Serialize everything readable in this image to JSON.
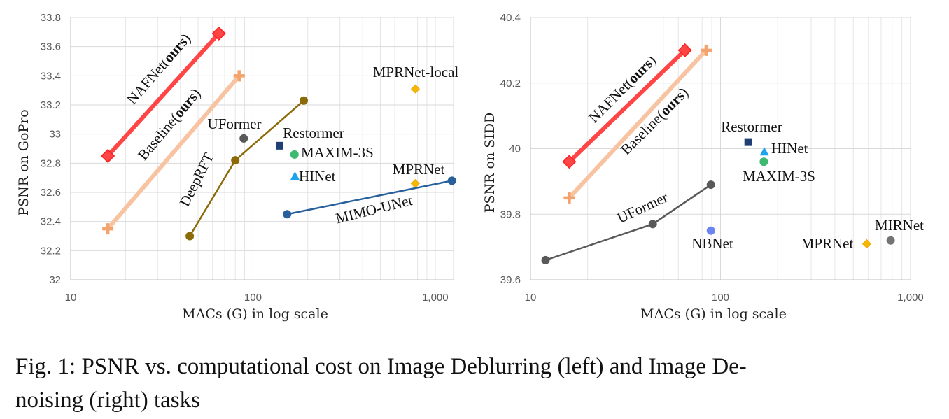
{
  "caption": {
    "line1": "Fig. 1: PSNR vs. computational cost on Image Deblurring (left) and Image De-",
    "line2": "noising (right) tasks"
  },
  "chart_data": [
    {
      "type": "scatter",
      "xlabel": "MACs (G) in log scale",
      "ylabel": "PSNR on GoPro",
      "xscale": "log",
      "xlim": [
        10,
        1260
      ],
      "ylim": [
        32,
        33.8
      ],
      "xticks": [
        "10",
        "100",
        "1,000"
      ],
      "xtick_values": [
        10,
        100,
        1000
      ],
      "yticks": [
        "32",
        "32.2",
        "32.4",
        "32.6",
        "32.8",
        "33",
        "33.2",
        "33.4",
        "33.6",
        "33.8"
      ],
      "ytick_values": [
        32,
        32.2,
        32.4,
        32.6,
        32.8,
        33,
        33.2,
        33.4,
        33.6,
        33.8
      ],
      "grid": true,
      "series": [
        {
          "name": "NAFNet(ours)",
          "color": "#ff4545",
          "marker": "diamond",
          "x": [
            16,
            65
          ],
          "y": [
            32.85,
            33.69
          ]
        },
        {
          "name": "Baseline(ours)",
          "color": "#f7c3a0",
          "marker_color": "#f4a36c",
          "marker": "plus",
          "x": [
            16,
            84
          ],
          "y": [
            32.35,
            33.4
          ]
        },
        {
          "name": "DeepRFT",
          "color": "#8c6a0a",
          "marker": "circle",
          "x": [
            45,
            80,
            190
          ],
          "y": [
            32.3,
            32.82,
            33.23
          ]
        },
        {
          "name": "UFormer",
          "color": "#595959",
          "marker": "circle",
          "x": [
            89
          ],
          "y": [
            32.97
          ]
        },
        {
          "name": "Restormer",
          "color": "#1f3f75",
          "marker": "square",
          "x": [
            140
          ],
          "y": [
            32.92
          ]
        },
        {
          "name": "MAXIM-3S",
          "color": "#3dba6f",
          "marker": "circle",
          "x": [
            169
          ],
          "y": [
            32.86
          ]
        },
        {
          "name": "HINet",
          "color": "#1fa3ea",
          "marker": "triangle",
          "x": [
            170
          ],
          "y": [
            32.71
          ]
        },
        {
          "name": "MPRNet",
          "color": "#f5b800",
          "marker": "diamond-small",
          "x": [
            777
          ],
          "y": [
            32.66
          ]
        },
        {
          "name": "MPRNet-local",
          "color": "#f5b800",
          "marker": "diamond-small",
          "x": [
            778
          ],
          "y": [
            33.31
          ]
        },
        {
          "name": "MIMO-UNet",
          "color": "#27609a",
          "marker": "circle",
          "x": [
            154,
            1235
          ],
          "y": [
            32.45,
            32.68
          ]
        }
      ]
    },
    {
      "type": "scatter",
      "xlabel": "MACs (G) in log scale",
      "ylabel": "PSNR on SIDD",
      "xscale": "log",
      "xlim": [
        10,
        1000
      ],
      "ylim": [
        39.6,
        40.4
      ],
      "xticks": [
        "10",
        "100",
        "1,000"
      ],
      "xtick_values": [
        10,
        100,
        1000
      ],
      "yticks": [
        "39.6",
        "39.8",
        "40",
        "40.2",
        "40.4"
      ],
      "ytick_values": [
        39.6,
        39.8,
        40,
        40.2,
        40.4
      ],
      "grid": true,
      "series": [
        {
          "name": "NAFNet(ours)",
          "color": "#ff4545",
          "marker": "diamond",
          "x": [
            16,
            65
          ],
          "y": [
            39.96,
            40.3
          ]
        },
        {
          "name": "Baseline(ours)",
          "color": "#f7c3a0",
          "marker_color": "#f4a36c",
          "marker": "plus",
          "x": [
            16,
            84
          ],
          "y": [
            39.85,
            40.3
          ]
        },
        {
          "name": "UFormer",
          "color": "#595959",
          "marker": "circle",
          "x": [
            12,
            44,
            89
          ],
          "y": [
            39.66,
            39.77,
            39.89
          ]
        },
        {
          "name": "Restormer",
          "color": "#1f3f75",
          "marker": "square",
          "x": [
            140
          ],
          "y": [
            40.02
          ]
        },
        {
          "name": "HINet",
          "color": "#1fa3ea",
          "marker": "triangle",
          "x": [
            170
          ],
          "y": [
            39.99
          ]
        },
        {
          "name": "MAXIM-3S",
          "color": "#3dba6f",
          "marker": "circle",
          "x": [
            169
          ],
          "y": [
            39.96
          ]
        },
        {
          "name": "NBNet",
          "color": "#6b84f2",
          "marker": "circle",
          "x": [
            89
          ],
          "y": [
            39.75
          ]
        },
        {
          "name": "MPRNet",
          "color": "#f5b800",
          "marker": "diamond-small",
          "x": [
            588
          ],
          "y": [
            39.71
          ]
        },
        {
          "name": "MIRNet",
          "color": "#737373",
          "marker": "circle",
          "x": [
            786
          ],
          "y": [
            39.72
          ]
        }
      ]
    }
  ]
}
